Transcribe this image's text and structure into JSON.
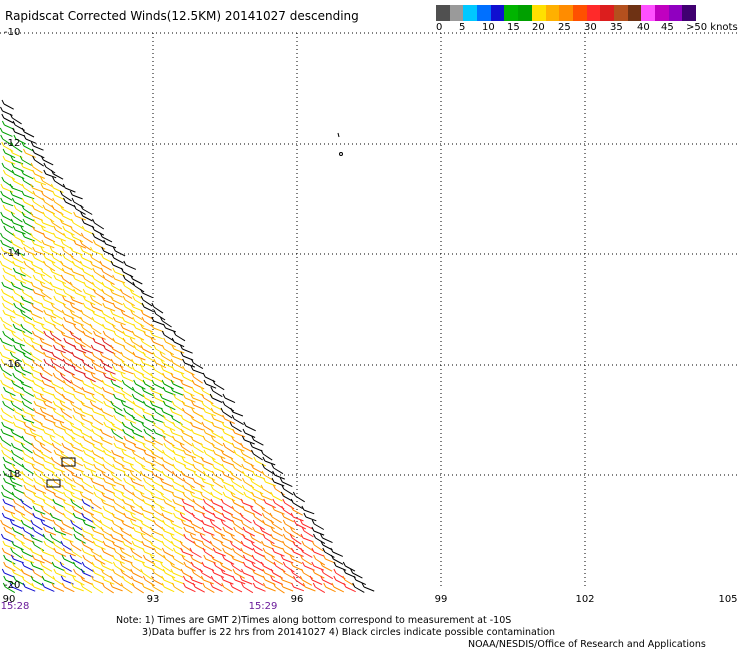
{
  "title": "Rapidscat Corrected Winds(12.5KM) 20141027 descending",
  "legend": {
    "colors": [
      "#505050",
      "#9a9a9a",
      "#00c8ff",
      "#0070ff",
      "#1010d0",
      "#00b400",
      "#00a000",
      "#ffe000",
      "#ffb000",
      "#ff8c00",
      "#ff5000",
      "#ff2a2a",
      "#dc1e1e",
      "#b4501e",
      "#6e3214",
      "#ff50ff",
      "#c000c0",
      "#9000c0",
      "#400070"
    ],
    "labels": [
      "0",
      "5",
      "10",
      "15",
      "20",
      "25",
      "30",
      "35",
      "40",
      "45",
      ">50 knots"
    ]
  },
  "axes": {
    "lat_labels": [
      "-10",
      "-12",
      "-14",
      "-16",
      "-18",
      "-20"
    ],
    "lon_labels": [
      "90",
      "93",
      "96",
      "99",
      "102",
      "105"
    ]
  },
  "time_labels": [
    "15:28",
    "15:29"
  ],
  "notes": [
    "Note: 1) Times are GMT 2)Times along bottom correspond to measurement at -10S",
    "3)Data buffer is 22 hrs from 20141027 4) Black circles indicate possible contamination",
    "NOAA/NESDIS/Office of Research and Applications"
  ]
}
